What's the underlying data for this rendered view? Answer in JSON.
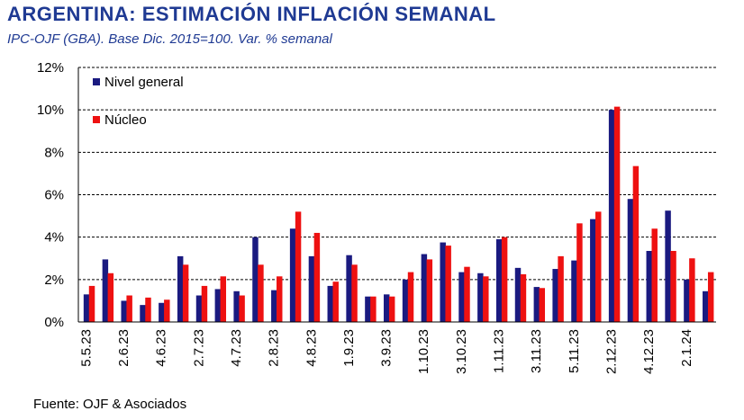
{
  "header": {
    "title": "ARGENTINA: ESTIMACIÓN INFLACIÓN SEMANAL",
    "subtitle": "IPC-OJF (GBA). Base Dic. 2015=100.  Var. % semanal"
  },
  "footer": {
    "source": "Fuente: OJF & Asociados"
  },
  "colors": {
    "nivel_general": "#1a1a80",
    "nucleo": "#ee1111",
    "grid": "#000000"
  },
  "chart_data": {
    "type": "bar",
    "title": "ARGENTINA: ESTIMACIÓN INFLACIÓN SEMANAL",
    "subtitle": "IPC-OJF (GBA). Base Dic. 2015=100.  Var. % semanal",
    "ylim": [
      0,
      12
    ],
    "y_ticks": [
      "0%",
      "2%",
      "4%",
      "6%",
      "8%",
      "10%",
      "12%"
    ],
    "y_tick_values": [
      0,
      2,
      4,
      6,
      8,
      10,
      12
    ],
    "grid": "horizontal dashed",
    "legend_placement": "top-left",
    "x_tick_labels": [
      "5.5.23",
      "2.6.23",
      "4.6.23",
      "2.7.23",
      "4.7.23",
      "2.8.23",
      "4.8.23",
      "1.9.23",
      "3.9.23",
      "1.10.23",
      "3.10.23",
      "1.11.23",
      "3.11.23",
      "5.11.23",
      "2.12.23",
      "4.12.23",
      "2.1.24"
    ],
    "series": [
      {
        "name": "Nivel general",
        "values": [
          1.3,
          2.95,
          1.0,
          0.8,
          0.9,
          3.1,
          1.25,
          1.55,
          1.45,
          4.0,
          1.5,
          4.4,
          3.1,
          1.7,
          3.15,
          1.2,
          1.3,
          2.0,
          3.2,
          3.75,
          2.35,
          2.3,
          3.9,
          2.55,
          1.65,
          2.5,
          2.9,
          4.85,
          10.0,
          5.8,
          3.35,
          5.25,
          2.0,
          1.45
        ]
      },
      {
        "name": "Núcleo",
        "values": [
          1.7,
          2.3,
          1.25,
          1.15,
          1.05,
          2.7,
          1.7,
          2.15,
          1.25,
          2.7,
          2.15,
          5.2,
          4.2,
          1.9,
          2.7,
          1.2,
          1.2,
          2.35,
          2.95,
          3.6,
          2.6,
          2.15,
          4.0,
          2.25,
          1.6,
          3.1,
          4.65,
          5.2,
          10.15,
          7.35,
          4.4,
          3.35,
          3.0,
          2.35
        ]
      }
    ]
  }
}
